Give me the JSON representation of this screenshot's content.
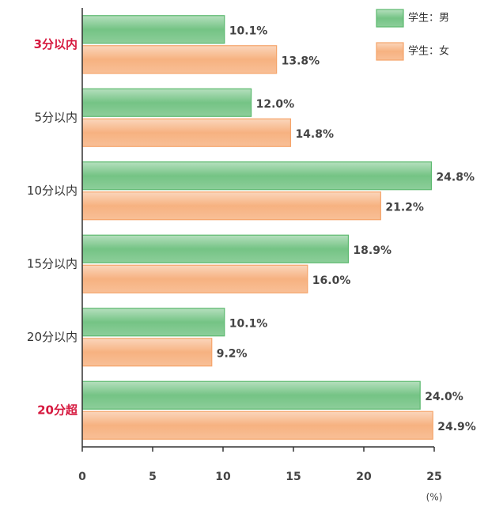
{
  "chart_data": {
    "type": "hbar",
    "categories": [
      "3分以内",
      "5分以内",
      "10分以内",
      "15分以内",
      "20分以内",
      "20分超"
    ],
    "category_colors": [
      "#d6193f",
      "#333333",
      "#333333",
      "#333333",
      "#333333",
      "#d6193f"
    ],
    "series": [
      {
        "name": "学生：男",
        "color": "#5cb96f",
        "values": [
          10.1,
          12.0,
          24.8,
          18.9,
          10.1,
          24.0
        ],
        "value_labels": [
          "10.1%",
          "12.0%",
          "24.8%",
          "18.9%",
          "10.1%",
          "24.0%"
        ]
      },
      {
        "name": "学生：女",
        "color": "#f5a46a",
        "values": [
          13.8,
          14.8,
          21.2,
          16.0,
          9.2,
          24.9
        ],
        "value_labels": [
          "13.8%",
          "14.8%",
          "21.2%",
          "16.0%",
          "9.2%",
          "24.9%"
        ]
      }
    ],
    "xlim": [
      0,
      25
    ],
    "xticks": [
      0,
      5,
      10,
      15,
      20,
      25
    ],
    "x_unit": "(%)",
    "legend": "top-right"
  }
}
